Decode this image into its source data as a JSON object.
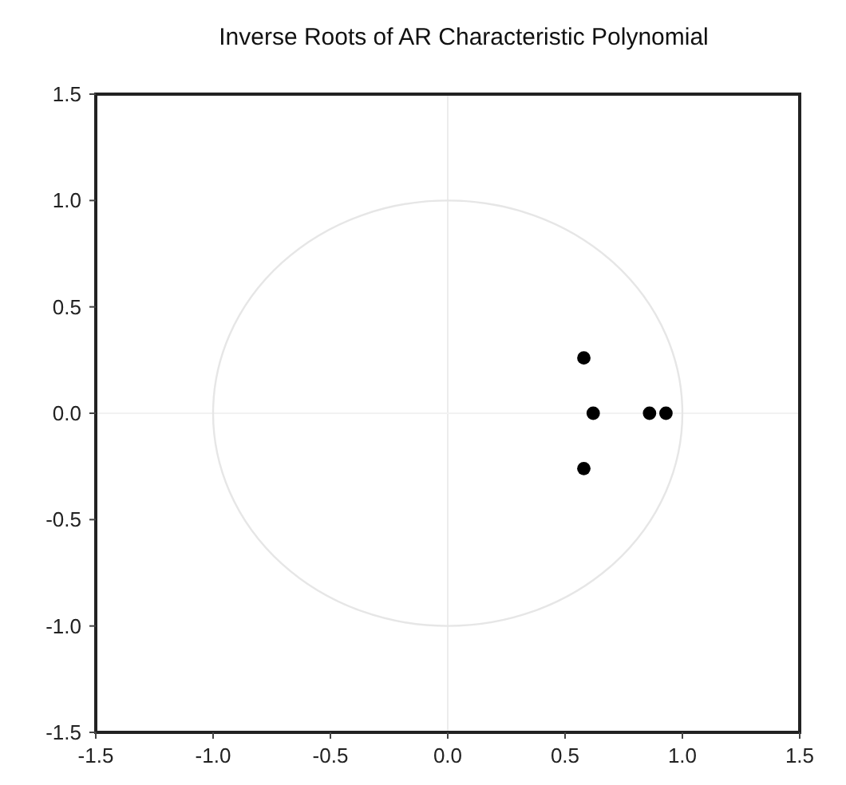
{
  "chart_data": {
    "type": "scatter",
    "title": "Inverse Roots of AR Characteristic Polynomial",
    "xlim": [
      -1.5,
      1.5
    ],
    "ylim": [
      -1.5,
      1.5
    ],
    "xticks": [
      {
        "value": -1.5,
        "label": "-1.5"
      },
      {
        "value": -1,
        "label": "-1.0"
      },
      {
        "value": -0.5,
        "label": "-0.5"
      },
      {
        "value": 0,
        "label": "0.0"
      },
      {
        "value": 0.5,
        "label": "0.5"
      },
      {
        "value": 1,
        "label": "1.0"
      },
      {
        "value": 1.5,
        "label": "1.5"
      }
    ],
    "yticks": [
      {
        "value": -1.5,
        "label": "-1.5"
      },
      {
        "value": -1,
        "label": "-1.0"
      },
      {
        "value": -0.5,
        "label": "-0.5"
      },
      {
        "value": 0,
        "label": "0.0"
      },
      {
        "value": 0.5,
        "label": "0.5"
      },
      {
        "value": 1,
        "label": "1.0"
      },
      {
        "value": 1.5,
        "label": "1.5"
      }
    ],
    "grid": false,
    "marker": "circle",
    "ref_lines": [
      {
        "axis": "x",
        "value": 0,
        "color": "#ececec"
      },
      {
        "axis": "y",
        "value": 0,
        "color": "#f2f2f2"
      }
    ],
    "series": [
      {
        "color": "#000000",
        "x": [
          0.58,
          0.58,
          0.62,
          0.86,
          0.93
        ],
        "values": [
          0.26,
          -0.26,
          0,
          0,
          0
        ]
      }
    ]
  }
}
